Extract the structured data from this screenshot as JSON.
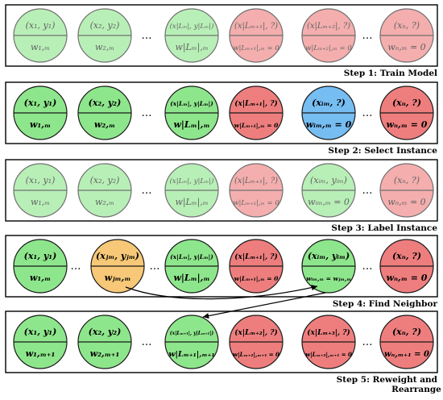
{
  "green": "#8ee68c",
  "red": "#ee7e7e",
  "blue": "#76bdf2",
  "orange": "#f6c877",
  "ellipsis": "…",
  "steps": [
    {
      "label": "Step 1: Train Model",
      "faded": true,
      "nodes": [
        {
          "top": "(x₁, y₁)",
          "bottom": "w₁,ₘ",
          "color": "green"
        },
        {
          "top": "(x₂, y₂)",
          "bottom": "w₂,ₘ",
          "color": "green"
        },
        {
          "sep": true
        },
        {
          "top": "(x|Lₘ|, y|Lₘ|)",
          "bottom": "w|Lₘ|,ₘ",
          "color": "green"
        },
        {
          "top": "(x|Lₘ₊₁|, ?)",
          "bottom": "w|Lₘ₊₁|,ₘ = 0",
          "color": "red"
        },
        {
          "top": "(x|Lₘ₊₂|, ?)",
          "bottom": "w|Lₘ₊₂|,ₘ = 0",
          "color": "red"
        },
        {
          "sep": true
        },
        {
          "top": "(xₙ, ?)",
          "bottom": "wₙ,ₘ = 0",
          "color": "red"
        }
      ]
    },
    {
      "label": "Step 2: Select Instance",
      "faded": false,
      "nodes": [
        {
          "top": "(x₁, y₁)",
          "bottom": "w₁,ₘ",
          "color": "green"
        },
        {
          "top": "(x₂, y₂)",
          "bottom": "w₂,ₘ",
          "color": "green"
        },
        {
          "sep": true
        },
        {
          "top": "(x|Lₘ|, y|Lₘ|)",
          "bottom": "w|Lₘ|,ₘ",
          "color": "green"
        },
        {
          "top": "(x|Lₘ₊₁|, ?)",
          "bottom": "w|Lₘ₊₁|,ₘ = 0",
          "color": "red"
        },
        {
          "top": "(xᵢₘ, ?)",
          "bottom": "wᵢₘ,ₘ = 0",
          "color": "blue"
        },
        {
          "sep": true
        },
        {
          "top": "(xₙ, ?)",
          "bottom": "wₙ,ₘ = 0",
          "color": "red"
        }
      ]
    },
    {
      "label": "Step 3: Label Instance",
      "faded": true,
      "nodes": [
        {
          "top": "(x₁, y₁)",
          "bottom": "w₁,ₘ",
          "color": "green"
        },
        {
          "top": "(x₂, y₂)",
          "bottom": "w₂,ₘ",
          "color": "green"
        },
        {
          "sep": true
        },
        {
          "top": "(x|Lₘ|, y|Lₘ|)",
          "bottom": "w|Lₘ|,ₘ",
          "color": "green"
        },
        {
          "top": "(x|Lₘ₊₁|, ?)",
          "bottom": "w|Lₘ₊₁|,ₘ = 0",
          "color": "red"
        },
        {
          "top": "(xᵢₘ, yᵢₘ)",
          "bottom": "wᵢₘ,ₘ = 0",
          "color": "green"
        },
        {
          "sep": true
        },
        {
          "top": "(xₙ, ?)",
          "bottom": "wₙ,ₘ = 0",
          "color": "red"
        }
      ]
    },
    {
      "label": "Step 4: Find Neighbor",
      "faded": false,
      "nodes": [
        {
          "top": "(x₁, y₁)",
          "bottom": "w₁,ₘ",
          "color": "green"
        },
        {
          "sep": true
        },
        {
          "top": "(xⱼₘ, yⱼₘ)",
          "bottom": "wⱼₘ,ₘ",
          "color": "orange"
        },
        {
          "sep": true
        },
        {
          "top": "(x|Lₘ|, y|Lₘ|)",
          "bottom": "w|Lₘ|,ₘ",
          "color": "green"
        },
        {
          "top": "(x|Lₘ₊₁|, ?)",
          "bottom": "w|Lₘ₊₁|,ₘ = 0",
          "color": "red"
        },
        {
          "top": "(xᵢₘ, yᵢₘ)",
          "bottom": "wᵢₘ,ₘ = wⱼₘ,ₘ",
          "color": "green"
        },
        {
          "sep": true
        },
        {
          "top": "(xₙ, ?)",
          "bottom": "wₙ,ₘ = 0",
          "color": "red"
        }
      ]
    },
    {
      "label": "Step 5: Reweight and\nRearrange",
      "faded": false,
      "nodes": [
        {
          "top": "(x₁, y₁)",
          "bottom": "w₁,ₘ₊₁",
          "color": "green"
        },
        {
          "top": "(x₂, y₂)",
          "bottom": "w₂,ₘ₊₁",
          "color": "green"
        },
        {
          "sep": true
        },
        {
          "top": "(x|Lₘ₊₁|, y|Lₘ₊₁|)",
          "bottom": "w|Lₘ₊₁|,ₘ₊₁",
          "color": "green"
        },
        {
          "top": "(x|Lₘ₊₂|, ?)",
          "bottom": "w|Lₘ₊₂|,ₘ₊₁ = 0",
          "color": "red"
        },
        {
          "top": "(x|Lₘ₊₃|, ?)",
          "bottom": "w|Lₘ₊₃|,ₘ₊₁ = 0",
          "color": "red"
        },
        {
          "sep": true
        },
        {
          "top": "(xₙ, ?)",
          "bottom": "wₙ,ₘ₊₁ = 0",
          "color": "red"
        }
      ]
    }
  ]
}
